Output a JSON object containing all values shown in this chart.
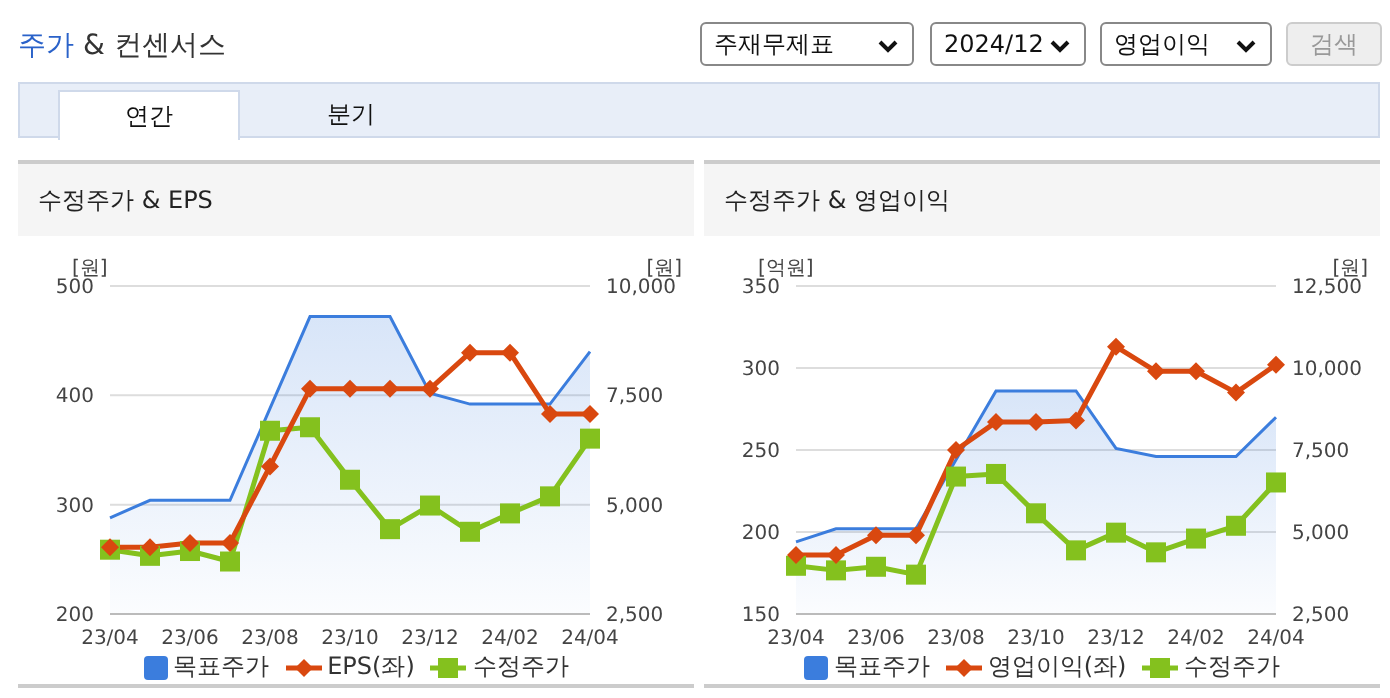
{
  "chart_data": [
    {
      "type": "other",
      "title": "주가 & 컨센서스",
      "annotations": [
        "주재무제표",
        "2024/12",
        "영업이익",
        "검색",
        "연간",
        "분기"
      ]
    },
    {
      "type": "line",
      "title": "수정주가 & EPS",
      "ylabel": "[원]",
      "y2label": "[원]",
      "categories": [
        "23/04",
        null,
        "23/06",
        null,
        "23/08",
        null,
        "23/10",
        null,
        "23/12",
        null,
        "24/02",
        null,
        "24/04"
      ],
      "series": [
        {
          "name": "목표주가",
          "type": "area",
          "axis": "y2",
          "color": "#3b7ddd",
          "marker": "none",
          "values": [
            4700,
            5100,
            5100,
            5100,
            7200,
            9300,
            9300,
            9300,
            7550,
            7300,
            7300,
            7300,
            8500
          ]
        },
        {
          "name": "EPS(좌)",
          "color": "#d9480f",
          "marker": "diamond",
          "values": [
            261,
            261,
            265,
            265,
            335,
            406,
            406,
            406,
            406,
            439,
            439,
            383,
            383
          ]
        },
        {
          "name": "수정주가",
          "axis": "y2",
          "color": "#84c11e",
          "marker": "square",
          "values": [
            3970,
            3830,
            3940,
            3700,
            6690,
            6770,
            5570,
            4440,
            4980,
            4380,
            4800,
            5190,
            6510
          ]
        }
      ],
      "ylim": [
        200,
        500
      ],
      "yticks": [
        200,
        300,
        400,
        500
      ],
      "y2lim": [
        2500,
        10000
      ],
      "y2ticks": [
        {
          "value": 2500,
          "label": "2,500"
        },
        {
          "value": 5000,
          "label": "5,000"
        },
        {
          "value": 7500,
          "label": "7,500"
        },
        {
          "value": 10000,
          "label": "10,000"
        }
      ],
      "grid": "y",
      "legend": "bottom"
    },
    {
      "type": "line",
      "title": "수정주가 & 영업이익",
      "ylabel": "[억원]",
      "y2label": "[원]",
      "categories": [
        "23/04",
        null,
        "23/06",
        null,
        "23/08",
        null,
        "23/10",
        null,
        "23/12",
        null,
        "24/02",
        null,
        "24/04"
      ],
      "series": [
        {
          "name": "목표주가",
          "type": "area",
          "axis": "y2",
          "color": "#3b7ddd",
          "marker": "none",
          "values": [
            4700,
            5100,
            5100,
            5100,
            7200,
            9300,
            9300,
            9300,
            7550,
            7300,
            7300,
            7300,
            8500
          ]
        },
        {
          "name": "영업이익(좌)",
          "color": "#d9480f",
          "marker": "diamond",
          "values": [
            186,
            186,
            198,
            198,
            250,
            267,
            267,
            268,
            313,
            298,
            298,
            285,
            302
          ]
        },
        {
          "name": "수정주가",
          "axis": "y2",
          "color": "#84c11e",
          "marker": "square",
          "values": [
            3970,
            3830,
            3940,
            3700,
            6690,
            6770,
            5570,
            4440,
            4980,
            4380,
            4800,
            5190,
            6510
          ]
        }
      ],
      "ylim": [
        150,
        350
      ],
      "yticks": [
        150,
        200,
        250,
        300,
        350
      ],
      "y2lim": [
        2500,
        12500
      ],
      "y2ticks": [
        {
          "value": 2500,
          "label": "2,500"
        },
        {
          "value": 5000,
          "label": "5,000"
        },
        {
          "value": 7500,
          "label": "7,500"
        },
        {
          "value": 10000,
          "label": "10,000"
        },
        {
          "value": 12500,
          "label": "12,500"
        }
      ],
      "grid": "y",
      "legend": "bottom"
    }
  ]
}
